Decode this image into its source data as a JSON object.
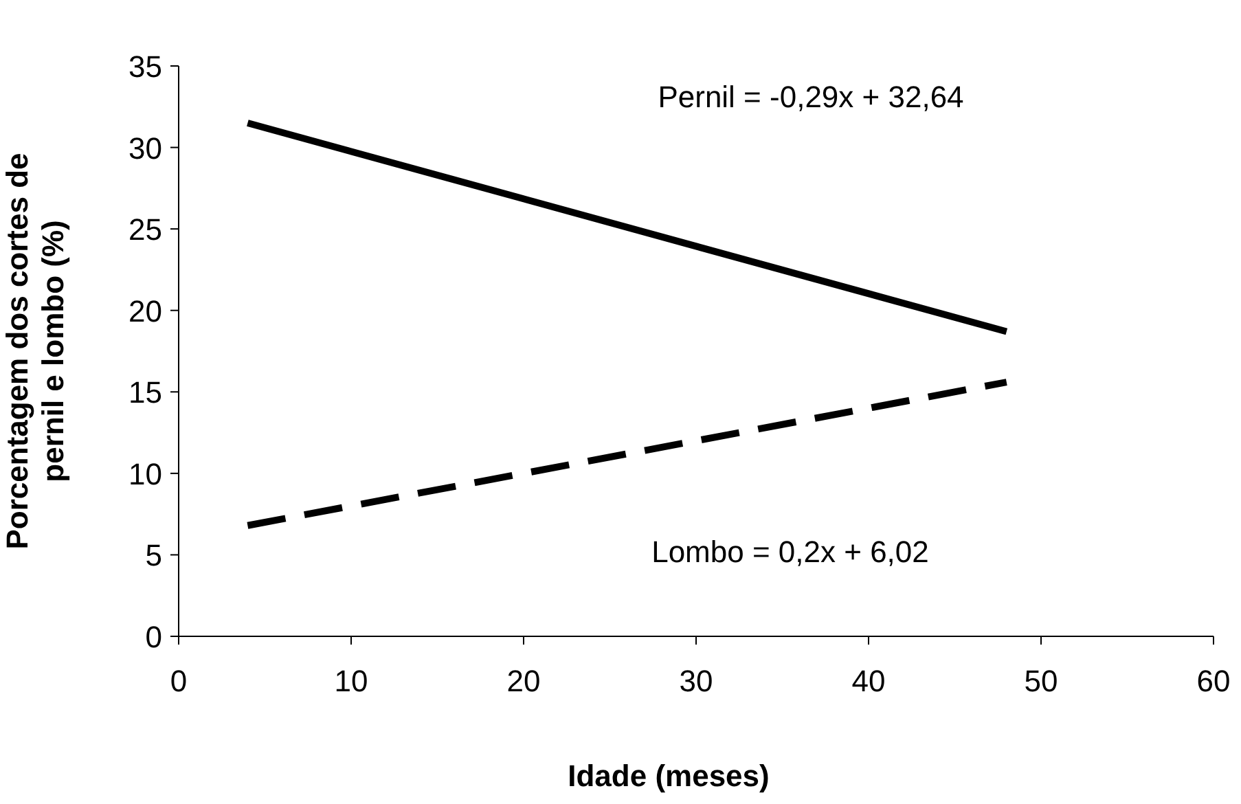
{
  "chart_data": {
    "type": "line",
    "xlabel": "Idade (meses)",
    "ylabel": "Porcentagem dos cortes de pernil e lombo (%)",
    "x": [
      4,
      48
    ],
    "series": [
      {
        "color": "#000000",
        "values": [
          31.5,
          18.7
        ],
        "line_style": "solid"
      },
      {
        "color": "#000000",
        "values": [
          6.8,
          15.6
        ],
        "line_style": "dashed"
      }
    ],
    "xlim": [
      0,
      60
    ],
    "xticks": [
      0,
      10,
      20,
      30,
      40,
      50,
      60
    ],
    "ylim": [
      0,
      35
    ],
    "yticks": [
      0,
      5,
      10,
      15,
      20,
      25,
      30,
      35
    ],
    "grid": false,
    "marker": "none",
    "annotations": [
      "Pernil = -0,29x + 32,64",
      "Lombo = 0,2x + 6,02"
    ]
  }
}
